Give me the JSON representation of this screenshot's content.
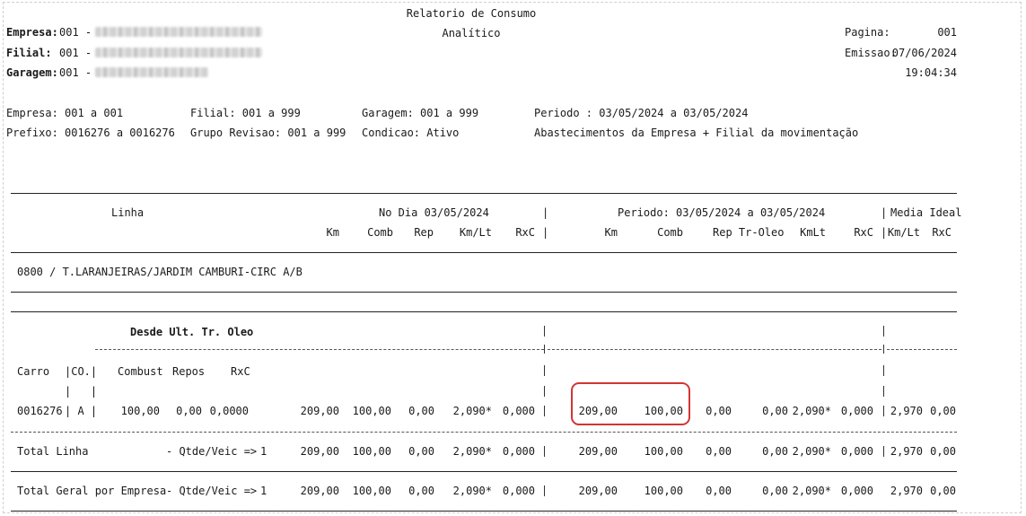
{
  "header": {
    "title": "Relatorio de Consumo",
    "subtitle": "Analítico",
    "empresa_label": "Empresa:",
    "empresa_value": "001 -",
    "filial_label": "Filial:",
    "filial_value": "001 -",
    "garagem_label": "Garagem:",
    "garagem_value": "001 -",
    "pagina_label": "Pagina:",
    "pagina_value": "001",
    "emissao_label": "Emissao:",
    "emissao_value": "07/06/2024",
    "time": "19:04:34"
  },
  "filters": {
    "empresa": "Empresa: 001 a 001",
    "prefixo": "Prefixo: 0016276 a 0016276",
    "filial": "Filial: 001 a 999",
    "grupo": "Grupo Revisao: 001 a 999",
    "garagem": "Garagem: 001 a 999",
    "condicao": "Condicao: Ativo",
    "periodo": "Periodo : 03/05/2024 a 03/05/2024",
    "abastecimentos": "Abastecimentos da Empresa + Filial da movimentação"
  },
  "columns": {
    "linha": "Linha",
    "no_dia": "No Dia 03/05/2024",
    "periodo": "Periodo: 03/05/2024 a 03/05/2024",
    "media_ideal": "Media Ideal",
    "km": "Km",
    "comb": "Comb",
    "rep": "Rep",
    "kmlt": "Km/Lt",
    "rxc": "RxC",
    "rep_troleo": "Rep Tr-Oleo",
    "kmlt2": "KmLt",
    "pipe": "|"
  },
  "linha_row": "0800 / T.LARANJEIRAS/JARDIM CAMBURI-CIRC A/B",
  "section": {
    "desde": "Desde Ult. Tr. Oleo",
    "carro": "Carro",
    "co": "|CO.|",
    "combust": "Combust",
    "repos": "Repos",
    "rxc": "RxC",
    "pipes": "|   |"
  },
  "vehicle_row": {
    "carro": "0016276",
    "co": "| A |",
    "combust": "100,00",
    "repos": "0,00",
    "rxc": "0,0000",
    "dia": [
      "209,00",
      "100,00",
      "0,00",
      "2,090*",
      "0,000"
    ],
    "periodo": [
      "209,00",
      "100,00",
      "0,00",
      "0,00",
      "2,090*",
      "0,000"
    ],
    "media": [
      "2,970",
      "0,00"
    ]
  },
  "total_linha": {
    "label": "Total Linha",
    "qtde": "- Qtde/Veic =>",
    "qtde_value": "1",
    "dia": [
      "209,00",
      "100,00",
      "0,00",
      "2,090*",
      "0,000"
    ],
    "periodo": [
      "209,00",
      "100,00",
      "0,00",
      "0,00",
      "2,090*",
      "0,000"
    ],
    "media": [
      "2,970",
      "0,00"
    ]
  },
  "total_geral": {
    "label": "Total Geral por Empresa",
    "qtde": "- Qtde/Veic =>",
    "qtde_value": "1",
    "dia": [
      "209,00",
      "100,00",
      "0,00",
      "2,090*",
      "0,000"
    ],
    "periodo": [
      "209,00",
      "100,00",
      "0,00",
      "0,00",
      "2,090*",
      "0,000"
    ],
    "media": [
      "2,970",
      "0,00"
    ]
  }
}
